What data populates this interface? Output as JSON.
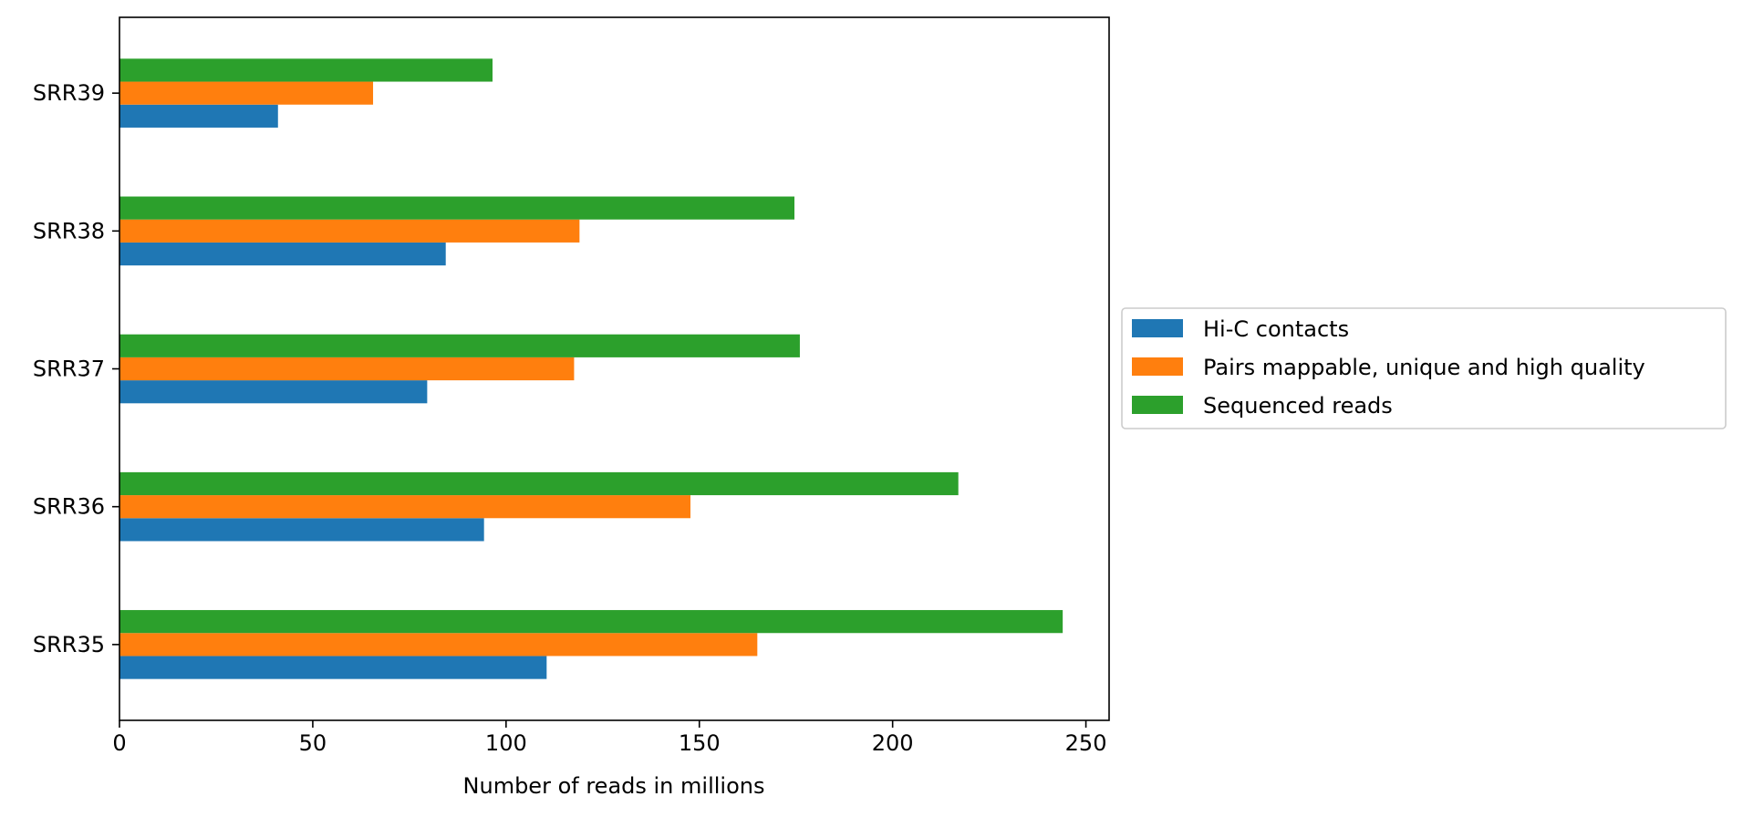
{
  "chart_data": {
    "type": "bar",
    "orientation": "horizontal",
    "title": "",
    "xlabel": "Number of reads in millions",
    "ylabel": "",
    "categories": [
      "SRR35",
      "SRR36",
      "SRR37",
      "SRR38",
      "SRR39"
    ],
    "xlim": [
      0,
      256
    ],
    "xticks": [
      0,
      50,
      100,
      150,
      200,
      250
    ],
    "grid": false,
    "legend_position": "outside-right",
    "series": [
      {
        "name": "Hi-C contacts",
        "color": "#1f77b4",
        "values": [
          110.5,
          94.3,
          79.6,
          84.4,
          41.0
        ]
      },
      {
        "name": "Pairs mappable, unique and high quality",
        "color": "#ff7f0e",
        "values": [
          165.0,
          147.7,
          117.6,
          119.0,
          65.6
        ]
      },
      {
        "name": "Sequenced reads",
        "color": "#2ca02c",
        "values": [
          244.0,
          217.0,
          176.0,
          174.6,
          96.5
        ]
      }
    ]
  }
}
